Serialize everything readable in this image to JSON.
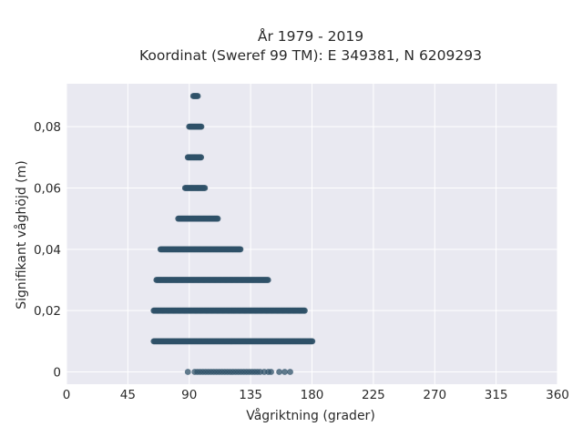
{
  "chart_data": {
    "type": "scatter",
    "title": "År 1979 - 2019",
    "subtitle": "Koordinat (Sweref 99 TM): E 349381, N 6209293",
    "xlabel": "Vågriktning (grader)",
    "ylabel": "Signifikant våghöjd (m)",
    "xlim": [
      0,
      360
    ],
    "ylim": [
      -0.004,
      0.094
    ],
    "x_ticks": [
      0,
      45,
      90,
      135,
      180,
      225,
      270,
      315,
      360
    ],
    "y_ticks": [
      0,
      0.02,
      0.04,
      0.06,
      0.08
    ],
    "y_tick_labels": [
      "0",
      "0,02",
      "0,04",
      "0,06",
      "0,08"
    ],
    "grid": true,
    "background": "#e9e9f1",
    "point_color": "#2f5168",
    "bands": [
      {
        "y": 0.09,
        "x_min": 93,
        "x_max": 97
      },
      {
        "y": 0.08,
        "x_min": 90,
        "x_max": 99
      },
      {
        "y": 0.07,
        "x_min": 89,
        "x_max": 99
      },
      {
        "y": 0.06,
        "x_min": 87,
        "x_max": 102
      },
      {
        "y": 0.05,
        "x_min": 82,
        "x_max": 111
      },
      {
        "y": 0.04,
        "x_min": 69,
        "x_max": 128
      },
      {
        "y": 0.03,
        "x_min": 66,
        "x_max": 148
      },
      {
        "y": 0.02,
        "x_min": 64,
        "x_max": 175
      },
      {
        "y": 0.01,
        "x_min": 64,
        "x_max": 181
      }
    ],
    "zero_points": [
      89,
      94,
      96,
      98,
      100,
      102,
      104,
      106,
      108,
      110,
      112,
      114,
      116,
      118,
      120,
      122,
      124,
      126,
      128,
      130,
      132,
      134,
      136,
      138,
      140,
      142,
      145,
      148,
      150,
      156,
      160,
      164
    ]
  }
}
